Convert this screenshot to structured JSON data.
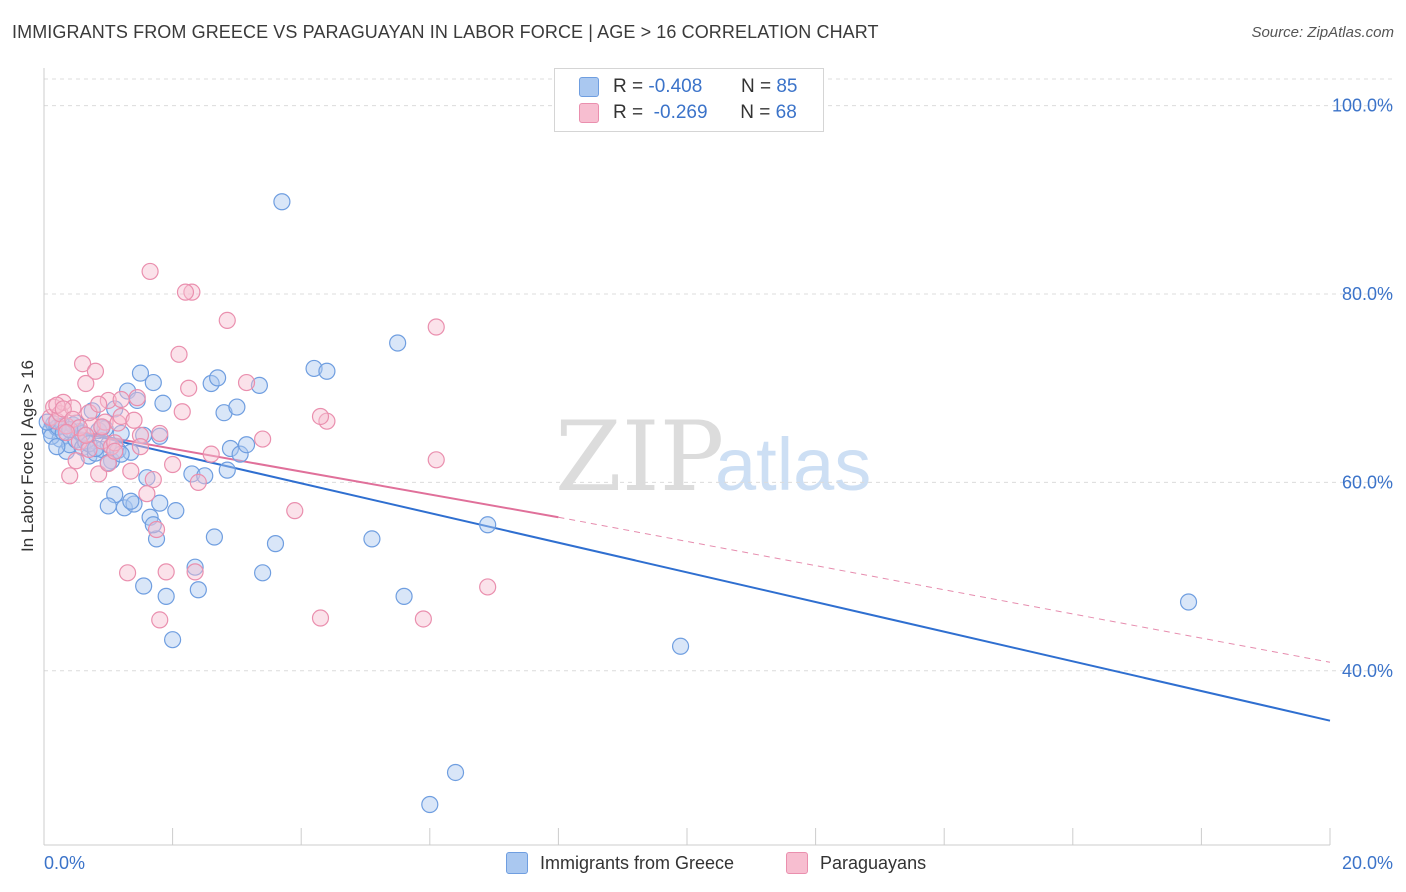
{
  "header": {
    "title": "IMMIGRANTS FROM GREECE VS PARAGUAYAN IN LABOR FORCE | AGE > 16 CORRELATION CHART",
    "source": "Source: ZipAtlas.com"
  },
  "watermark": {
    "zip": "ZIP",
    "atlas": "atlas"
  },
  "legend": {
    "rows": [
      {
        "r_label": "R =",
        "r_value": "-0.408",
        "n_label": "N =",
        "n_value": "85"
      },
      {
        "r_label": "R =",
        "r_value": "-0.269",
        "n_label": "N =",
        "n_value": "68"
      }
    ],
    "bottom": [
      "Immigrants from Greece",
      "Paraguayans"
    ]
  },
  "colors": {
    "blue_fill": "#aac8f0",
    "blue_stroke": "#6f9ee0",
    "blue_line": "#2f6fd0",
    "pink_fill": "#f7bed0",
    "pink_stroke": "#ea8fae",
    "pink_line": "#e0709a",
    "tick_text": "#3b73c9",
    "grid": "#dcdcdc"
  },
  "chart_data": {
    "type": "scatter",
    "title": "IMMIGRANTS FROM GREECE VS PARAGUAYAN IN LABOR FORCE | AGE > 16 CORRELATION CHART",
    "ylabel": "In Labor Force | Age > 16",
    "xlabel": "",
    "xlim": [
      0,
      20
    ],
    "ylim": [
      21.5,
      104
    ],
    "x_tick_labels": [
      "0.0%",
      "20.0%"
    ],
    "y_ticks": [
      40,
      60,
      80,
      100
    ],
    "y_tick_labels": [
      "40.0%",
      "60.0%",
      "80.0%",
      "100.0%"
    ],
    "grid": true,
    "legend_position": "top-center",
    "series": [
      {
        "name": "Immigrants from Greece",
        "color": "#6f9ee0",
        "trend": {
          "x": [
            0,
            20
          ],
          "y": [
            66.2,
            34.7
          ],
          "style": "solid"
        },
        "points": [
          [
            0.1,
            65.5
          ],
          [
            0.15,
            66.2
          ],
          [
            0.2,
            65.8
          ],
          [
            0.25,
            64.6
          ],
          [
            0.3,
            66.0
          ],
          [
            0.35,
            63.3
          ],
          [
            0.4,
            64.0
          ],
          [
            0.45,
            66.1
          ],
          [
            0.5,
            64.5
          ],
          [
            0.55,
            65.4
          ],
          [
            0.6,
            63.7
          ],
          [
            0.65,
            64.3
          ],
          [
            0.7,
            62.8
          ],
          [
            0.75,
            67.6
          ],
          [
            0.8,
            63.1
          ],
          [
            0.85,
            65.5
          ],
          [
            0.9,
            63.5
          ],
          [
            0.95,
            65.7
          ],
          [
            1.0,
            64.0
          ],
          [
            1.05,
            62.3
          ],
          [
            1.1,
            58.7
          ],
          [
            1.15,
            63.4
          ],
          [
            1.2,
            65.2
          ],
          [
            1.25,
            57.3
          ],
          [
            1.3,
            69.7
          ],
          [
            1.35,
            63.2
          ],
          [
            1.4,
            57.7
          ],
          [
            1.45,
            68.7
          ],
          [
            1.5,
            71.6
          ],
          [
            1.55,
            49.0
          ],
          [
            1.6,
            60.5
          ],
          [
            1.65,
            56.3
          ],
          [
            1.7,
            70.6
          ],
          [
            1.75,
            54.0
          ],
          [
            1.8,
            64.9
          ],
          [
            1.85,
            68.4
          ],
          [
            1.9,
            47.9
          ],
          [
            2.0,
            43.3
          ],
          [
            2.05,
            57.0
          ],
          [
            2.3,
            60.9
          ],
          [
            2.35,
            51.0
          ],
          [
            2.4,
            48.6
          ],
          [
            2.6,
            70.5
          ],
          [
            2.65,
            54.2
          ],
          [
            2.7,
            71.1
          ],
          [
            2.8,
            67.4
          ],
          [
            2.85,
            61.3
          ],
          [
            2.9,
            63.6
          ],
          [
            3.0,
            68.0
          ],
          [
            3.05,
            63.0
          ],
          [
            3.15,
            64.0
          ],
          [
            3.35,
            70.3
          ],
          [
            3.4,
            50.4
          ],
          [
            3.6,
            53.5
          ],
          [
            3.7,
            89.8
          ],
          [
            4.2,
            72.1
          ],
          [
            4.4,
            71.8
          ],
          [
            5.1,
            54.0
          ],
          [
            5.5,
            74.8
          ],
          [
            5.6,
            47.9
          ],
          [
            6.0,
            25.8
          ],
          [
            6.4,
            29.2
          ],
          [
            6.9,
            55.5
          ],
          [
            9.9,
            42.6
          ],
          [
            17.8,
            47.3
          ],
          [
            0.12,
            64.9
          ],
          [
            0.22,
            65.9
          ],
          [
            0.6,
            65.2
          ],
          [
            1.0,
            57.5
          ],
          [
            0.3,
            65.3
          ],
          [
            0.5,
            66.3
          ],
          [
            0.7,
            64.1
          ],
          [
            0.9,
            65.8
          ],
          [
            1.1,
            67.8
          ],
          [
            1.2,
            63.0
          ],
          [
            1.35,
            58.0
          ],
          [
            1.55,
            65.0
          ],
          [
            1.7,
            55.5
          ],
          [
            1.8,
            57.8
          ],
          [
            0.4,
            65.6
          ],
          [
            0.8,
            63.6
          ],
          [
            1.0,
            62.1
          ],
          [
            0.2,
            63.8
          ],
          [
            2.5,
            60.7
          ],
          [
            0.05,
            66.4
          ]
        ]
      },
      {
        "name": "Paraguayans",
        "color": "#ea8fae",
        "trend": {
          "x": [
            0,
            8.0
          ],
          "y": [
            66.0,
            56.3
          ],
          "style": "solid",
          "dashed_to": [
            20,
            40.9
          ]
        },
        "points": [
          [
            0.1,
            66.9
          ],
          [
            0.15,
            68.0
          ],
          [
            0.2,
            66.5
          ],
          [
            0.25,
            67.3
          ],
          [
            0.3,
            68.5
          ],
          [
            0.35,
            66.0
          ],
          [
            0.4,
            60.7
          ],
          [
            0.45,
            67.9
          ],
          [
            0.5,
            62.3
          ],
          [
            0.55,
            64.3
          ],
          [
            0.6,
            72.6
          ],
          [
            0.65,
            70.5
          ],
          [
            0.7,
            63.5
          ],
          [
            0.75,
            66.0
          ],
          [
            0.8,
            71.8
          ],
          [
            0.85,
            60.9
          ],
          [
            0.9,
            64.4
          ],
          [
            0.95,
            66.4
          ],
          [
            1.0,
            68.7
          ],
          [
            1.05,
            63.8
          ],
          [
            1.1,
            64.2
          ],
          [
            1.15,
            66.3
          ],
          [
            1.2,
            67.0
          ],
          [
            1.3,
            50.4
          ],
          [
            1.35,
            61.2
          ],
          [
            1.4,
            66.6
          ],
          [
            1.45,
            69.0
          ],
          [
            1.5,
            65.0
          ],
          [
            1.6,
            58.8
          ],
          [
            1.65,
            82.4
          ],
          [
            1.7,
            60.3
          ],
          [
            1.75,
            55.0
          ],
          [
            1.8,
            45.4
          ],
          [
            1.9,
            50.5
          ],
          [
            2.0,
            61.9
          ],
          [
            2.1,
            73.6
          ],
          [
            2.15,
            67.5
          ],
          [
            2.25,
            70.0
          ],
          [
            2.3,
            80.2
          ],
          [
            2.35,
            50.5
          ],
          [
            2.4,
            60.0
          ],
          [
            2.6,
            63.0
          ],
          [
            2.85,
            77.2
          ],
          [
            3.15,
            70.6
          ],
          [
            3.4,
            64.6
          ],
          [
            3.9,
            57.0
          ],
          [
            4.3,
            45.6
          ],
          [
            4.4,
            66.5
          ],
          [
            4.3,
            67.0
          ],
          [
            5.9,
            45.5
          ],
          [
            6.1,
            62.4
          ],
          [
            6.1,
            76.5
          ],
          [
            6.9,
            48.9
          ],
          [
            0.2,
            68.2
          ],
          [
            0.3,
            67.8
          ],
          [
            0.45,
            66.7
          ],
          [
            0.55,
            65.8
          ],
          [
            0.7,
            67.4
          ],
          [
            0.9,
            65.9
          ],
          [
            1.0,
            62.0
          ],
          [
            1.2,
            68.8
          ],
          [
            1.5,
            63.8
          ],
          [
            1.8,
            65.2
          ],
          [
            2.2,
            80.2
          ],
          [
            0.35,
            65.3
          ],
          [
            0.65,
            65.0
          ],
          [
            0.85,
            68.3
          ],
          [
            1.1,
            63.3
          ]
        ]
      }
    ]
  }
}
